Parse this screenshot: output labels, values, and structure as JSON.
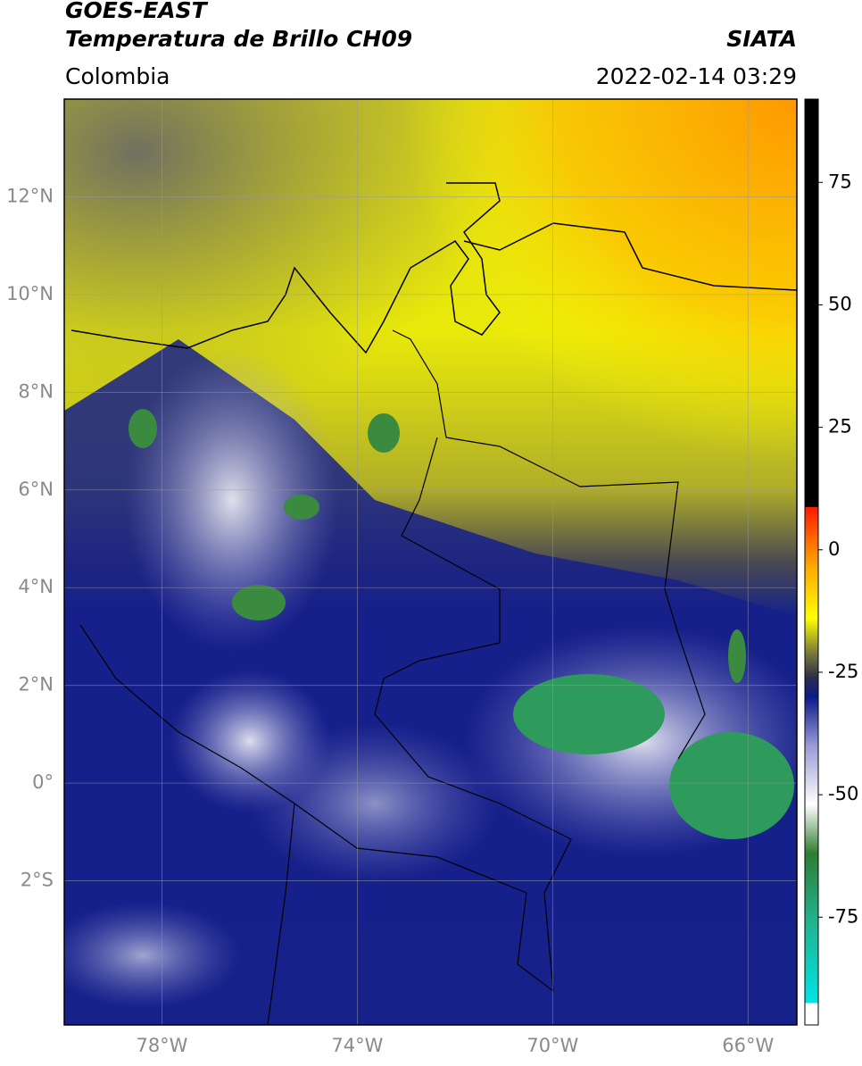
{
  "chart_data": {
    "type": "map",
    "title": "GOES-EAST",
    "subtitle": "Temperatura de Brillo CH09",
    "source": "SIATA",
    "region": "Colombia",
    "date": "2022-02-14 03:29",
    "xlim": [
      -80,
      -65
    ],
    "ylim": [
      -4.95,
      14
    ],
    "xticks": [
      {
        "value": -78,
        "label": "78°W"
      },
      {
        "value": -74,
        "label": "74°W"
      },
      {
        "value": -70,
        "label": "70°W"
      },
      {
        "value": -66,
        "label": "66°W"
      }
    ],
    "yticks": [
      {
        "value": -2,
        "label": "2°S"
      },
      {
        "value": 0,
        "label": "0°"
      },
      {
        "value": 2,
        "label": "2°N"
      },
      {
        "value": 4,
        "label": "4°N"
      },
      {
        "value": 6,
        "label": "6°N"
      },
      {
        "value": 8,
        "label": "8°N"
      },
      {
        "value": 10,
        "label": "10°N"
      },
      {
        "value": 12,
        "label": "12°N"
      }
    ],
    "grid": true,
    "colorbar": {
      "lim": [
        -97,
        92
      ],
      "ticks": [
        -75,
        -50,
        -25,
        0,
        25,
        50,
        75
      ],
      "stops": [
        {
          "value": -97,
          "color": "#ffffff"
        },
        {
          "value": -92.5,
          "color": "#ffffff"
        },
        {
          "value": -92.5,
          "color": "#00e5e5"
        },
        {
          "value": -75,
          "color": "#22b08a"
        },
        {
          "value": -62,
          "color": "#2e7d32"
        },
        {
          "value": -52,
          "color": "#ffffff"
        },
        {
          "value": -40,
          "color": "#9a9ad6"
        },
        {
          "value": -30,
          "color": "#0a1a8a"
        },
        {
          "value": -26,
          "color": "#2e2e48"
        },
        {
          "value": -21,
          "color": "#7a7a3a"
        },
        {
          "value": -14,
          "color": "#ffff00"
        },
        {
          "value": -3,
          "color": "#ffa500"
        },
        {
          "value": 8.7,
          "color": "#ff1a00"
        },
        {
          "value": 8.7,
          "color": "#000000"
        },
        {
          "value": 92,
          "color": "#000000"
        }
      ]
    }
  }
}
